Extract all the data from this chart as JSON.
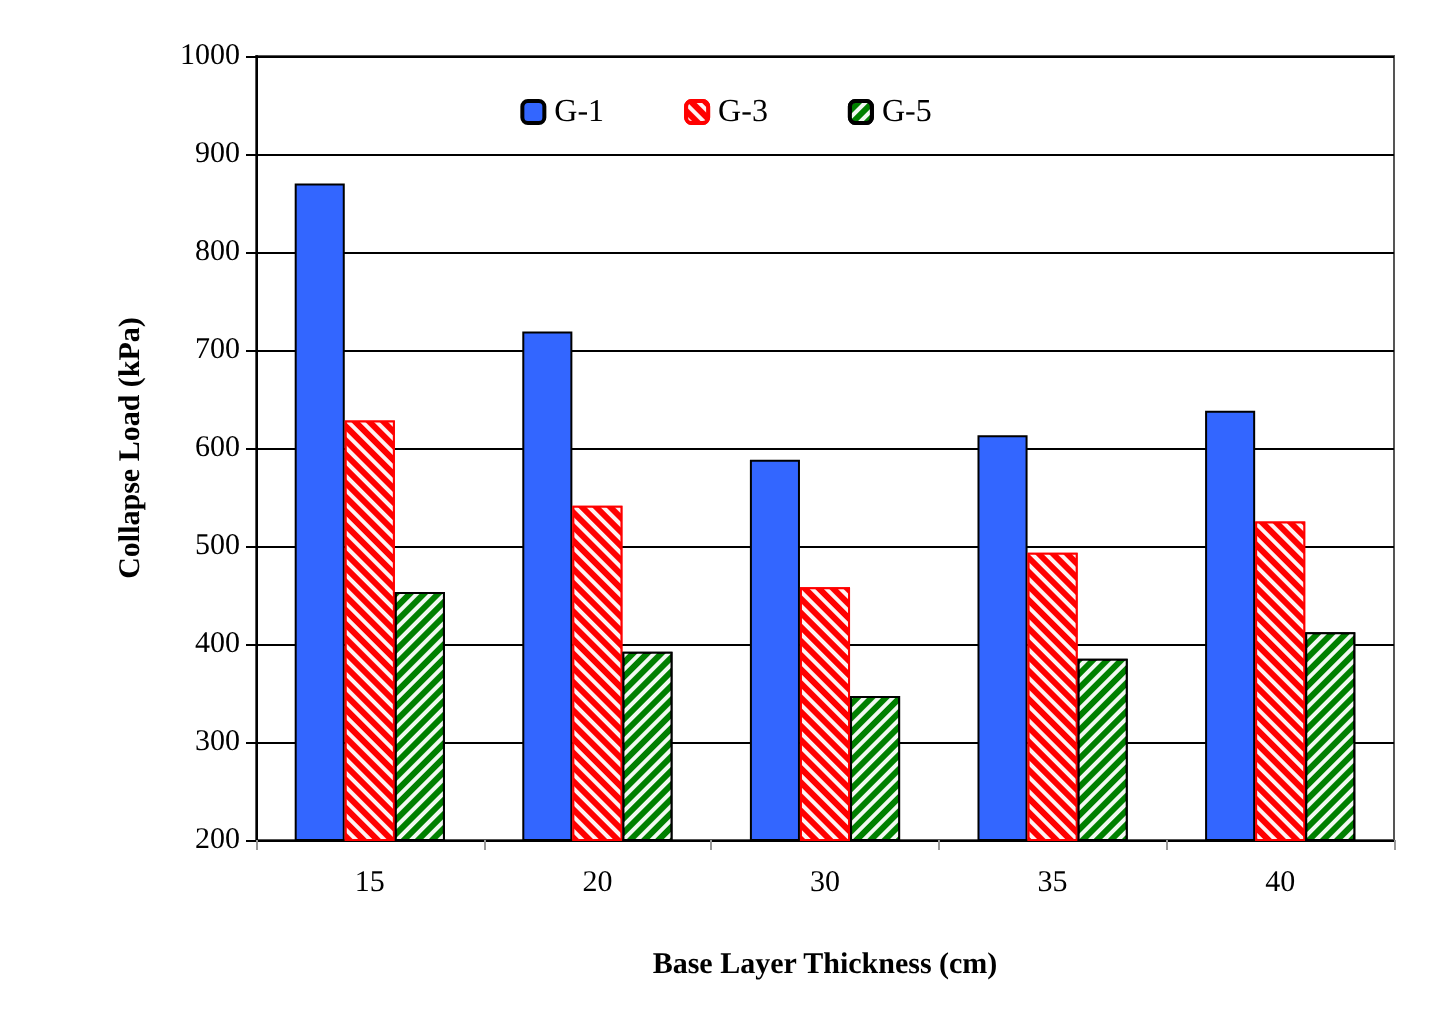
{
  "chart_data": {
    "type": "bar",
    "xlabel": "Base Layer Thickness (cm)",
    "ylabel": "Collapse Load (kPa)",
    "categories": [
      "15",
      "20",
      "30",
      "35",
      "40"
    ],
    "series": [
      {
        "name": "G-1",
        "color": "#3366ff",
        "values": [
          870,
          719,
          588,
          613,
          638
        ]
      },
      {
        "name": "G-3",
        "color": "#ff0000",
        "values": [
          628,
          541,
          458,
          493,
          525
        ]
      },
      {
        "name": "G-5",
        "color": "#008000",
        "values": [
          453,
          392,
          347,
          385,
          412
        ]
      }
    ],
    "ylim": [
      200,
      1000
    ],
    "yticks": [
      200,
      300,
      400,
      500,
      600,
      700,
      800,
      900,
      1000
    ],
    "grid": "y",
    "legend": "top"
  }
}
